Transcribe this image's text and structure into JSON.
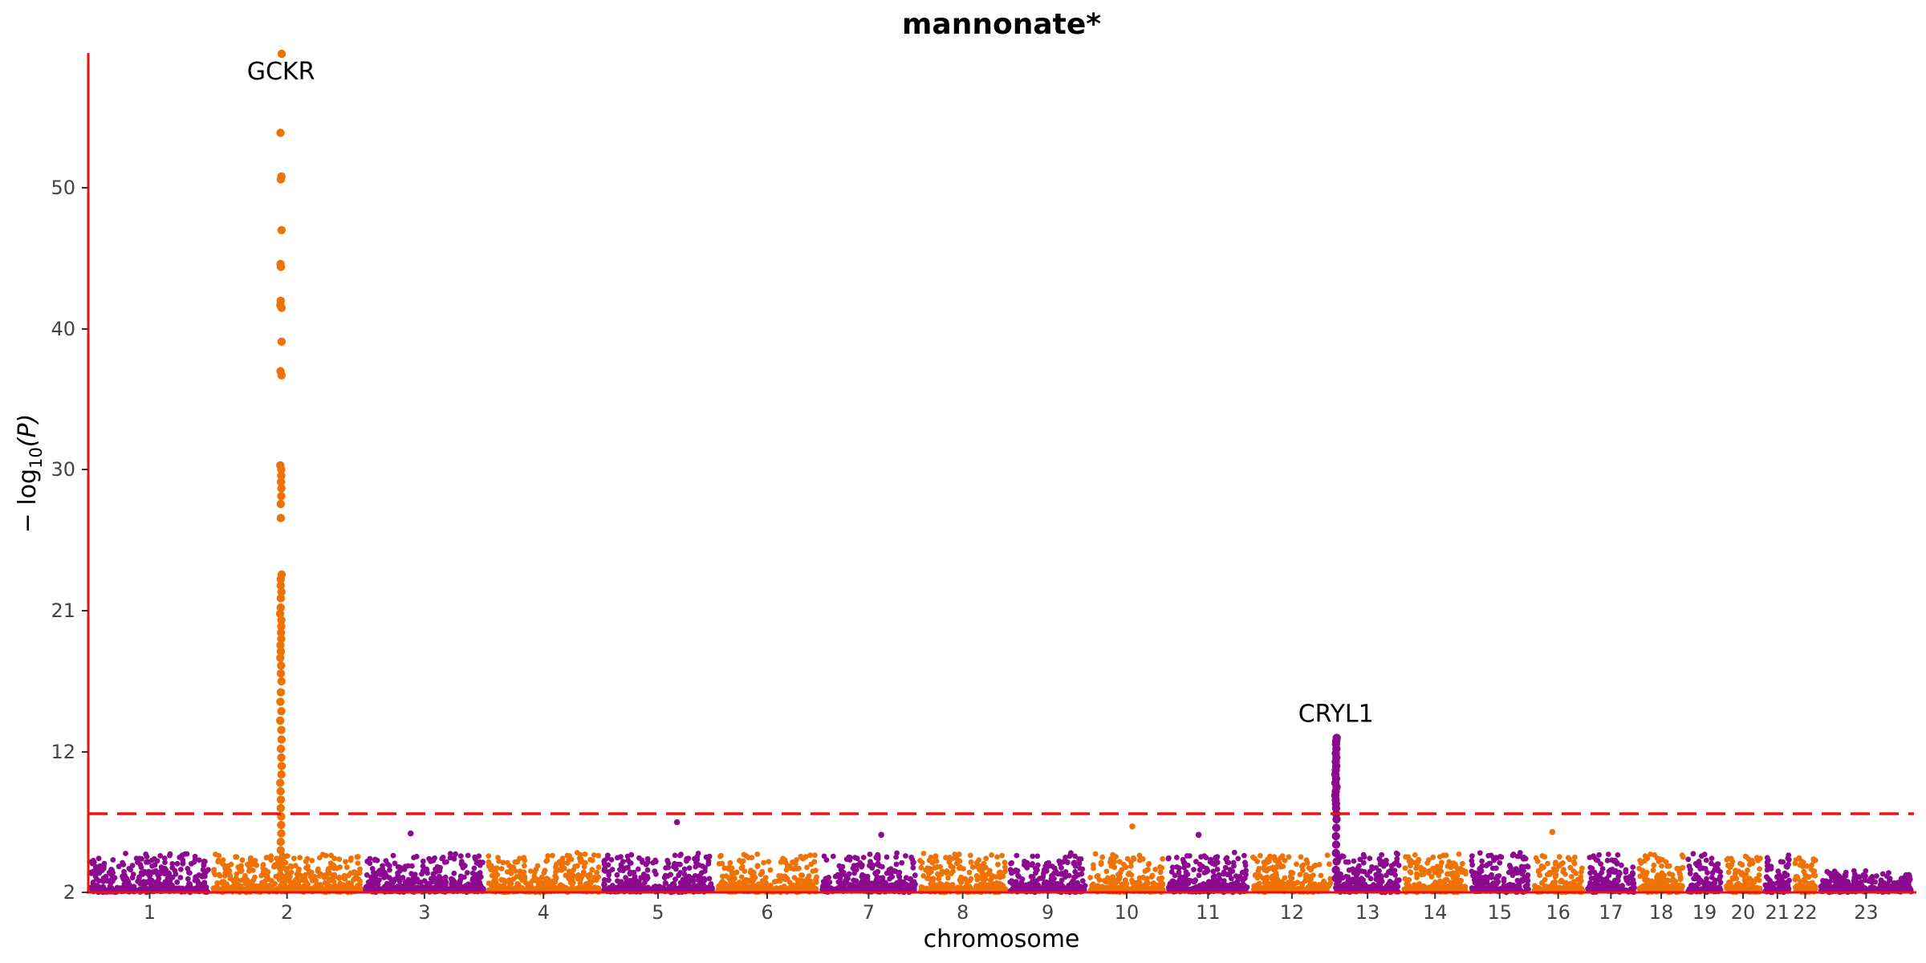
{
  "chart_data": {
    "type": "scatter",
    "subtype": "manhattan",
    "title": "mannonate*",
    "xlabel": "chromosome",
    "ylabel": "−log10(P)",
    "ylabel_parts": {
      "prefix": "− log",
      "subscript": "10",
      "suffix": "(P)"
    },
    "ylim": [
      2,
      61.5
    ],
    "y_axis_scale": "compressed above threshold (ggplot-style gap)",
    "yticks": [
      2,
      12,
      21,
      30,
      40,
      50
    ],
    "ytick_labels": [
      "2",
      "12",
      "21",
      "30",
      "40",
      "50"
    ],
    "threshold": {
      "value": 7.3,
      "style": "dashed",
      "color": "#ee1111"
    },
    "colors": {
      "odd_chromosome": "#8b0a8f",
      "even_chromosome": "#ef7206",
      "axis": "#ee1111"
    },
    "chromosomes": [
      "1",
      "2",
      "3",
      "4",
      "5",
      "6",
      "7",
      "8",
      "9",
      "10",
      "11",
      "12",
      "13",
      "14",
      "15",
      "16",
      "17",
      "18",
      "19",
      "20",
      "21",
      "22",
      "23"
    ],
    "series": [
      {
        "chromosome": "2",
        "gene": "GCKR",
        "peak_y": 59.5,
        "values": [
          59.5,
          53.9,
          50.8,
          50.6,
          47.0,
          44.6,
          44.4,
          42.0,
          41.7,
          41.5,
          39.1,
          37.0,
          36.7,
          30.3,
          30.0,
          29.6,
          29.2,
          28.8,
          28.3,
          27.8,
          26.9,
          23.3,
          23.0,
          22.6,
          22.2,
          21.8,
          21.2,
          20.8,
          20.4,
          20.0,
          19.6,
          19.2,
          18.8,
          18.4,
          18.0,
          17.5,
          17.0,
          16.5,
          15.8,
          15.2,
          14.6,
          14.0,
          13.4,
          12.8,
          12.2,
          11.6,
          11.0,
          10.4,
          9.8,
          9.2,
          8.6,
          8.0,
          7.4,
          6.8,
          6.2,
          5.6,
          5.0,
          4.4,
          3.8,
          3.2
        ]
      },
      {
        "chromosome": "13",
        "gene": "CRYL1",
        "peak_y": 12.9,
        "values": [
          12.9,
          12.7,
          12.5,
          12.2,
          11.9,
          11.6,
          11.3,
          11.0,
          10.7,
          10.4,
          10.1,
          9.8,
          9.5,
          9.2,
          8.9,
          8.6,
          8.3,
          8.0,
          7.6,
          7.2,
          6.6,
          6.0,
          5.4,
          4.8,
          4.2,
          3.6,
          3.0
        ]
      }
    ],
    "scattered_points": [
      {
        "chromosome": "5",
        "y": 7.0
      },
      {
        "chromosome": "10",
        "y": 6.7
      },
      {
        "chromosome": "3",
        "y": 6.2
      },
      {
        "chromosome": "11",
        "y": 6.1
      },
      {
        "chromosome": "16",
        "y": 6.3
      },
      {
        "chromosome": "7",
        "y": 6.1
      }
    ],
    "legend": "none",
    "grid": false
  }
}
